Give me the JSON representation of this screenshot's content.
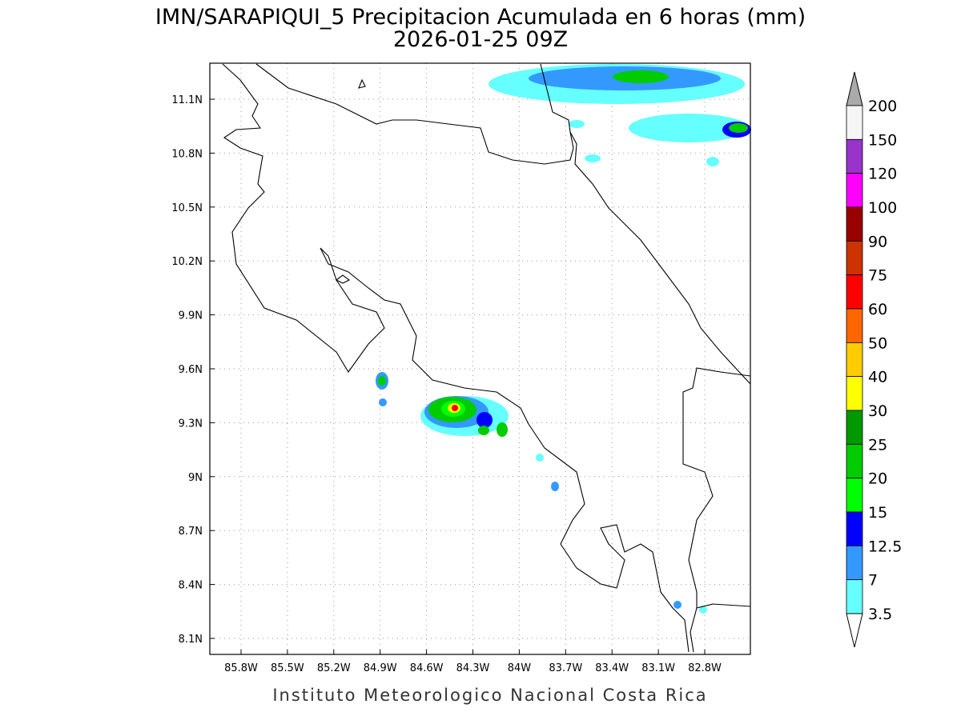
{
  "map": {
    "title": "IMN/SARAPIQUI_5 Precipitacion Acumulada en 6 horas (mm)",
    "subtitle": "2026-01-25 09Z",
    "lon_labels": [
      "85.8W",
      "85.5W",
      "85.2W",
      "84.9W",
      "84.6W",
      "84.3W",
      "84W",
      "83.7W",
      "83.4W",
      "83.1W",
      "82.8W"
    ],
    "lat_labels": [
      "11.1N",
      "10.8N",
      "10.5N",
      "10.2N",
      "9.9N",
      "9.6N",
      "9.3N",
      "9N",
      "8.7N",
      "8.4N",
      "8.1N"
    ],
    "colorbar": {
      "labels": [
        "200",
        "150",
        "120",
        "100",
        "90",
        "75",
        "60",
        "50",
        "40",
        "30",
        "25",
        "20",
        "15",
        "12.5",
        "7",
        "3.5"
      ],
      "colors": [
        "#f5f5f5",
        "#9933cc",
        "#ff00ff",
        "#990000",
        "#cc3300",
        "#ff0000",
        "#ff6600",
        "#ffcc00",
        "#ffff00",
        "#009900",
        "#00cc00",
        "#00ff00",
        "#0000ff",
        "#3399ff",
        "#66ffff"
      ],
      "over_color": "#aaaaaa",
      "under_color": "#ffffff"
    },
    "footer": "Instituto Meteorologico Nacional Costa Rica"
  }
}
